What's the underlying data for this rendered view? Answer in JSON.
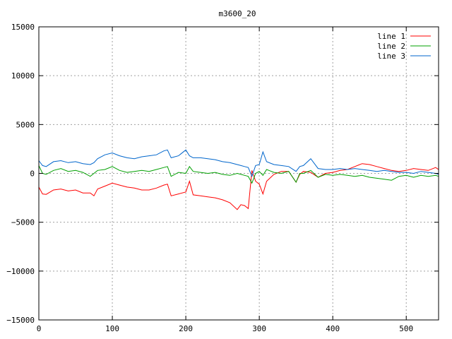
{
  "chart_data": {
    "type": "line",
    "title": "m3600_20",
    "xlabel": "",
    "ylabel": "",
    "xlim": [
      0,
      544
    ],
    "ylim": [
      -15000,
      15000
    ],
    "xticks": [
      0,
      100,
      200,
      300,
      400,
      500
    ],
    "yticks": [
      -15000,
      -10000,
      -5000,
      0,
      5000,
      10000,
      15000
    ],
    "xtick_labels": [
      "0",
      "100",
      "200",
      "300",
      "400",
      "500"
    ],
    "ytick_labels": [
      "−15000",
      "−10000",
      "−5000",
      "0",
      "5000",
      "10000",
      "15000"
    ],
    "grid": true,
    "legend_position": "top-right",
    "series": [
      {
        "name": "line 1",
        "color": "#ff0000",
        "x": [
          0,
          5,
          10,
          20,
          30,
          40,
          50,
          60,
          70,
          75,
          80,
          90,
          100,
          110,
          120,
          130,
          140,
          150,
          160,
          170,
          175,
          180,
          190,
          200,
          205,
          210,
          220,
          230,
          240,
          250,
          260,
          270,
          275,
          280,
          285,
          290,
          295,
          300,
          305,
          310,
          320,
          330,
          340,
          350,
          355,
          360,
          370,
          380,
          390,
          400,
          410,
          420,
          430,
          440,
          450,
          460,
          470,
          480,
          490,
          500,
          510,
          520,
          530,
          540,
          544
        ],
        "y": [
          -1400,
          -2100,
          -2150,
          -1700,
          -1600,
          -1800,
          -1700,
          -2000,
          -2000,
          -2300,
          -1600,
          -1300,
          -1000,
          -1200,
          -1400,
          -1500,
          -1700,
          -1700,
          -1500,
          -1200,
          -1100,
          -2300,
          -2100,
          -1900,
          -800,
          -2200,
          -2300,
          -2400,
          -2500,
          -2700,
          -3000,
          -3700,
          -3200,
          -3300,
          -3600,
          300,
          -800,
          -1100,
          -2100,
          -800,
          -100,
          200,
          200,
          -900,
          -100,
          200,
          100,
          -400,
          0,
          100,
          300,
          400,
          700,
          1000,
          900,
          700,
          500,
          300,
          200,
          300,
          500,
          400,
          300,
          600,
          400
        ]
      },
      {
        "name": "line 2",
        "color": "#00a000",
        "x": [
          0,
          5,
          10,
          20,
          30,
          40,
          50,
          60,
          70,
          75,
          80,
          90,
          100,
          110,
          120,
          130,
          140,
          150,
          160,
          170,
          175,
          180,
          190,
          200,
          205,
          210,
          220,
          230,
          240,
          250,
          260,
          270,
          275,
          280,
          285,
          290,
          295,
          300,
          305,
          310,
          320,
          330,
          340,
          350,
          355,
          360,
          370,
          380,
          390,
          400,
          410,
          420,
          430,
          440,
          450,
          460,
          470,
          480,
          490,
          500,
          510,
          520,
          530,
          540,
          544
        ],
        "y": [
          800,
          0,
          -100,
          300,
          500,
          200,
          300,
          100,
          -300,
          0,
          300,
          400,
          700,
          300,
          100,
          200,
          300,
          200,
          400,
          600,
          700,
          -300,
          100,
          0,
          700,
          200,
          100,
          0,
          100,
          -100,
          -200,
          0,
          -100,
          -200,
          -300,
          -1000,
          0,
          200,
          -200,
          400,
          100,
          0,
          200,
          -900,
          0,
          0,
          300,
          -400,
          -100,
          -200,
          -100,
          -200,
          -300,
          -200,
          -400,
          -500,
          -600,
          -700,
          -300,
          -200,
          -400,
          -200,
          -300,
          -200,
          -300
        ]
      },
      {
        "name": "line 3",
        "color": "#0066cc",
        "x": [
          0,
          5,
          10,
          20,
          30,
          40,
          50,
          60,
          70,
          75,
          80,
          90,
          100,
          110,
          120,
          130,
          140,
          150,
          160,
          170,
          175,
          180,
          190,
          200,
          205,
          210,
          220,
          230,
          240,
          250,
          260,
          270,
          275,
          280,
          285,
          290,
          295,
          300,
          305,
          310,
          320,
          330,
          340,
          350,
          355,
          360,
          370,
          380,
          390,
          400,
          410,
          420,
          430,
          440,
          450,
          460,
          470,
          480,
          490,
          500,
          510,
          520,
          530,
          540,
          544
        ],
        "y": [
          1300,
          800,
          700,
          1200,
          1300,
          1100,
          1200,
          1000,
          900,
          1100,
          1500,
          1900,
          2100,
          1800,
          1600,
          1500,
          1700,
          1800,
          1900,
          2300,
          2400,
          1600,
          1800,
          2400,
          1800,
          1600,
          1600,
          1500,
          1400,
          1200,
          1100,
          900,
          800,
          700,
          600,
          -300,
          800,
          900,
          2200,
          1200,
          900,
          800,
          700,
          200,
          700,
          800,
          1500,
          500,
          400,
          400,
          500,
          400,
          500,
          400,
          300,
          200,
          300,
          200,
          100,
          100,
          0,
          200,
          100,
          0,
          -100
        ]
      }
    ]
  }
}
